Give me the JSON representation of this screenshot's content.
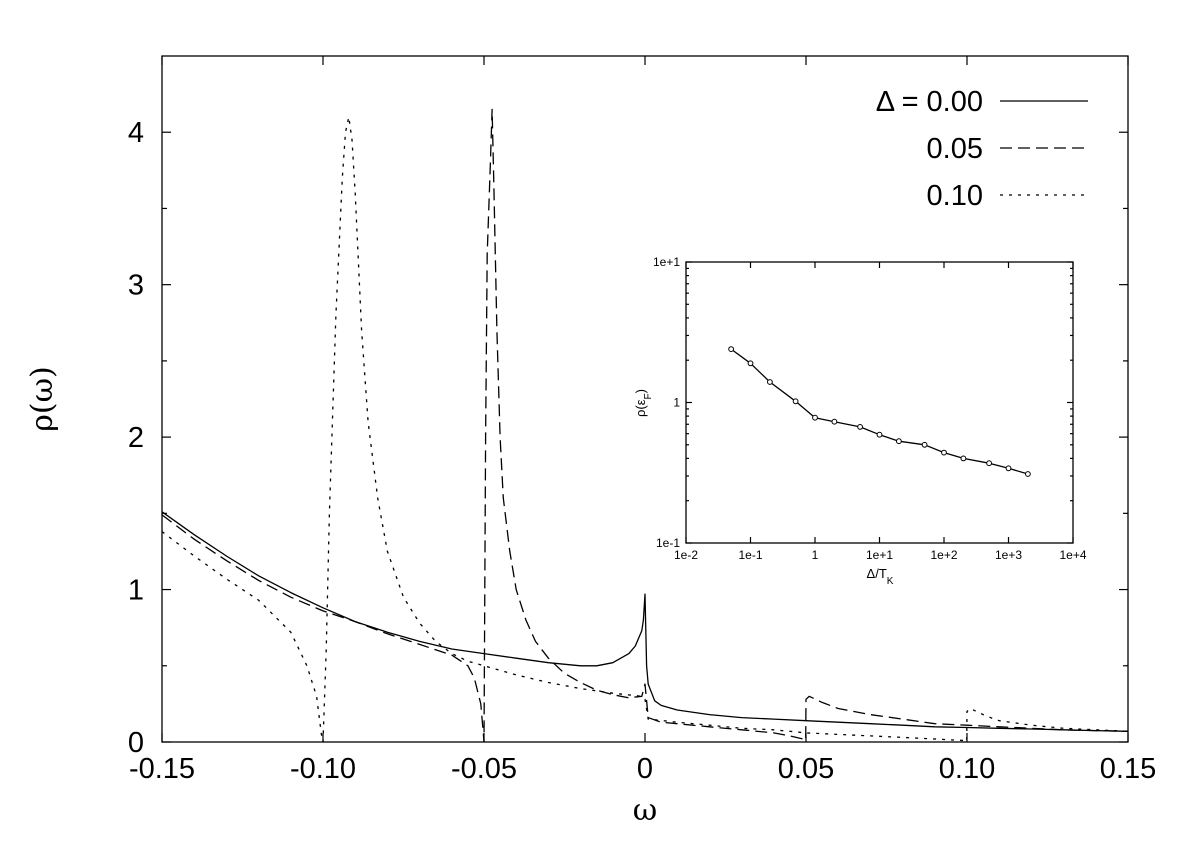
{
  "chart_data": [
    {
      "type": "line",
      "title": "",
      "xlabel": "ω",
      "ylabel": "ρ(ω)",
      "xlim": [
        -0.15,
        0.15
      ],
      "ylim": [
        0,
        4.5
      ],
      "xticks": [
        -0.15,
        -0.1,
        -0.05,
        0,
        0.05,
        0.1,
        0.15
      ],
      "xtick_labels": [
        "-0.15",
        "-0.10",
        "-0.05",
        "0",
        "0.05",
        "0.10",
        "0.15"
      ],
      "yticks": [
        0,
        1,
        2,
        3,
        4
      ],
      "ytick_labels": [
        "0",
        "1",
        "2",
        "3",
        "4"
      ],
      "grid": false,
      "legend_position": "top-right",
      "series": [
        {
          "name": "Δ = 0.00",
          "line_style": "solid",
          "x": [
            -0.15,
            -0.14,
            -0.13,
            -0.12,
            -0.11,
            -0.1,
            -0.09,
            -0.08,
            -0.07,
            -0.06,
            -0.05,
            -0.04,
            -0.03,
            -0.02,
            -0.015,
            -0.01,
            -0.005,
            -0.003,
            -0.001,
            -0.0005,
            0,
            0.0005,
            0.001,
            0.003,
            0.005,
            0.01,
            0.02,
            0.03,
            0.04,
            0.05,
            0.06,
            0.07,
            0.08,
            0.09,
            0.1,
            0.11,
            0.12,
            0.13,
            0.14,
            0.15
          ],
          "y": [
            1.51,
            1.36,
            1.22,
            1.09,
            0.98,
            0.88,
            0.79,
            0.72,
            0.66,
            0.61,
            0.58,
            0.55,
            0.52,
            0.5,
            0.5,
            0.52,
            0.58,
            0.63,
            0.73,
            0.8,
            0.97,
            0.5,
            0.38,
            0.27,
            0.24,
            0.21,
            0.18,
            0.16,
            0.15,
            0.14,
            0.13,
            0.12,
            0.11,
            0.1,
            0.095,
            0.09,
            0.085,
            0.08,
            0.075,
            0.07
          ]
        },
        {
          "name": "0.05",
          "line_style": "dashed",
          "x": [
            -0.15,
            -0.14,
            -0.13,
            -0.12,
            -0.11,
            -0.1,
            -0.09,
            -0.08,
            -0.07,
            -0.06,
            -0.055,
            -0.053,
            -0.051,
            -0.0502,
            -0.05,
            -0.0495,
            -0.049,
            -0.048,
            -0.0475,
            -0.047,
            -0.046,
            -0.045,
            -0.044,
            -0.042,
            -0.04,
            -0.037,
            -0.034,
            -0.03,
            -0.025,
            -0.02,
            -0.015,
            -0.01,
            -0.005,
            -0.001,
            0,
            0.001,
            0.005,
            0.01,
            0.02,
            0.03,
            0.04,
            0.045,
            0.049,
            0.0499,
            0.05,
            0.051,
            0.052,
            0.055,
            0.06,
            0.07,
            0.08,
            0.09,
            0.1,
            0.11,
            0.12,
            0.13,
            0.14,
            0.15
          ],
          "y": [
            1.49,
            1.33,
            1.19,
            1.06,
            0.95,
            0.86,
            0.79,
            0.71,
            0.64,
            0.57,
            0.5,
            0.42,
            0.25,
            0.05,
            0,
            2.0,
            3.2,
            3.8,
            4.15,
            3.7,
            2.7,
            2.0,
            1.6,
            1.25,
            1.0,
            0.8,
            0.66,
            0.55,
            0.45,
            0.39,
            0.34,
            0.31,
            0.29,
            0.3,
            0.38,
            0.16,
            0.13,
            0.12,
            0.1,
            0.08,
            0.06,
            0.04,
            0.02,
            0.01,
            0.28,
            0.3,
            0.29,
            0.26,
            0.22,
            0.18,
            0.15,
            0.12,
            0.11,
            0.1,
            0.09,
            0.08,
            0.075,
            0.07
          ]
        },
        {
          "name": "0.10",
          "line_style": "dotted",
          "x": [
            -0.15,
            -0.14,
            -0.13,
            -0.12,
            -0.11,
            -0.105,
            -0.102,
            -0.1005,
            -0.1,
            -0.099,
            -0.098,
            -0.096,
            -0.094,
            -0.093,
            -0.092,
            -0.091,
            -0.09,
            -0.088,
            -0.086,
            -0.083,
            -0.08,
            -0.075,
            -0.07,
            -0.065,
            -0.06,
            -0.055,
            -0.05,
            -0.04,
            -0.03,
            -0.02,
            -0.01,
            -0.001,
            0,
            0.001,
            0.01,
            0.02,
            0.03,
            0.04,
            0.05,
            0.06,
            0.07,
            0.08,
            0.09,
            0.099,
            0.0999,
            0.1,
            0.101,
            0.103,
            0.106,
            0.11,
            0.12,
            0.13,
            0.14,
            0.15
          ],
          "y": [
            1.38,
            1.22,
            1.07,
            0.93,
            0.72,
            0.5,
            0.3,
            0.05,
            0.0,
            0.6,
            1.5,
            2.8,
            3.7,
            4.0,
            4.1,
            3.95,
            3.6,
            2.7,
            2.1,
            1.6,
            1.25,
            0.95,
            0.78,
            0.66,
            0.58,
            0.53,
            0.5,
            0.44,
            0.39,
            0.35,
            0.32,
            0.3,
            0.28,
            0.15,
            0.13,
            0.11,
            0.09,
            0.08,
            0.06,
            0.05,
            0.04,
            0.03,
            0.02,
            0.01,
            0.0,
            0.2,
            0.22,
            0.2,
            0.17,
            0.14,
            0.11,
            0.09,
            0.08,
            0.07
          ]
        }
      ]
    },
    {
      "type": "line",
      "title": "",
      "xlabel": "Δ/T_K",
      "ylabel": "ρ(ε_F)",
      "x_scale": "log",
      "y_scale": "log",
      "xlim": [
        0.01,
        10000
      ],
      "ylim": [
        0.1,
        10
      ],
      "xticks": [
        0.01,
        0.1,
        1,
        10,
        100,
        1000,
        10000
      ],
      "xtick_labels": [
        "1e-2",
        "1e-1",
        "1",
        "1e+1",
        "1e+2",
        "1e+3",
        "1e+4"
      ],
      "yticks": [
        0.1,
        1,
        10
      ],
      "ytick_labels": [
        "1e-1",
        "1",
        "1e+1"
      ],
      "grid": false,
      "markers": "open-circle",
      "series": [
        {
          "name": "",
          "x": [
            0.05,
            0.1,
            0.2,
            0.5,
            1,
            2,
            5,
            10,
            20,
            50,
            100,
            200,
            500,
            1000,
            2000
          ],
          "y": [
            2.4,
            1.9,
            1.4,
            1.02,
            0.78,
            0.73,
            0.67,
            0.59,
            0.53,
            0.5,
            0.44,
            0.4,
            0.37,
            0.34,
            0.31
          ]
        }
      ]
    }
  ]
}
